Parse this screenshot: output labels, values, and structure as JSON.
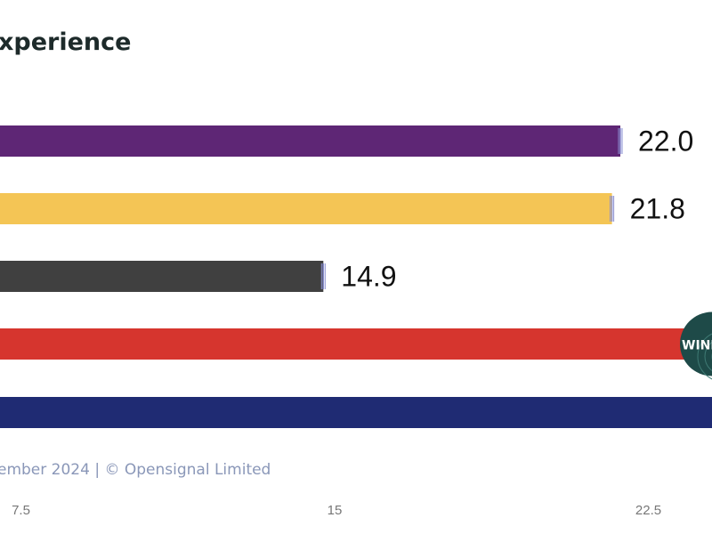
{
  "chart_data": {
    "type": "bar",
    "orientation": "horizontal",
    "title": "xperience",
    "categories": [
      "",
      "",
      "",
      "",
      ""
    ],
    "series": [
      {
        "values": [
          22.0,
          21.8,
          14.9,
          null,
          null
        ],
        "value_labels": [
          "22.0",
          "21.8",
          "14.9",
          "",
          ""
        ],
        "colors": [
          "#5e2675",
          "#f4c555",
          "#404040",
          "#d6352e",
          "#1f2b73"
        ]
      }
    ],
    "error_bar_color": "#8a8fd0",
    "x_ticks": [
      7.5,
      15,
      22.5
    ],
    "x_tick_labels": [
      "7.5",
      "15",
      "22.5"
    ],
    "grid": false,
    "winner_badge": {
      "text": "WINN",
      "bar_index": 3,
      "color": "#1e4a48"
    },
    "footer": "ember 2024 | © Opensignal Limited"
  }
}
